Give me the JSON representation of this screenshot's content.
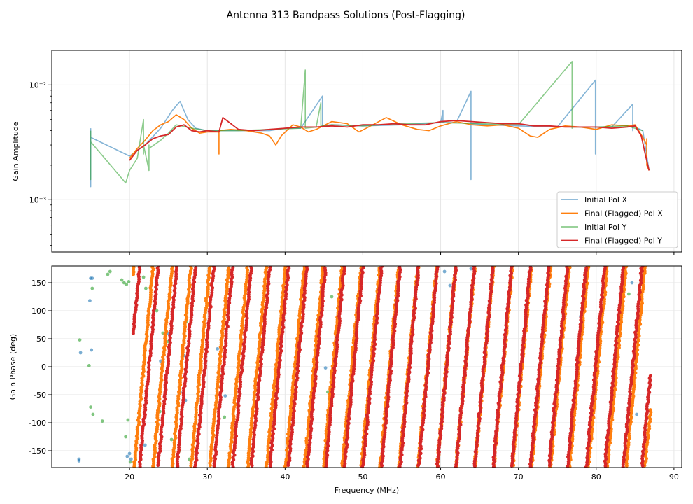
{
  "chart_data": {
    "title": "Antenna 313 Bandpass Solutions (Post-Flagging)",
    "xlabel": "Frequency (MHz)",
    "xlim": [
      10,
      91
    ],
    "xticks": [
      20,
      30,
      40,
      50,
      60,
      70,
      80,
      90
    ],
    "colors": {
      "initial_x": "#1f77b4",
      "final_x": "#ff7f0e",
      "initial_y": "#2ca02c",
      "final_y": "#d62728"
    },
    "panels": [
      {
        "type": "line",
        "ylabel": "Gain Amplitude",
        "yscale": "log",
        "ylim": [
          0.00035,
          0.02
        ],
        "yticks": [
          {
            "value": 0.001,
            "label": "10⁻³"
          },
          {
            "value": 0.01,
            "label": "10⁻²"
          }
        ],
        "grid": true,
        "legend": {
          "placement": "lower-right",
          "entries": [
            "Initial Pol X",
            "Final (Flagged) Pol X",
            "Initial Pol Y",
            "Final (Flagged) Pol Y"
          ]
        },
        "series": [
          {
            "name": "Initial Pol X",
            "key": "initial_x",
            "x": [
              15.0,
              15.0,
              15.0,
              20.0,
              22.0,
              24.0,
              25.5,
              26.5,
              27.5,
              28.5,
              30.0,
              32.0,
              34.0,
              38.0,
              40.0,
              42.0,
              44.8,
              44.8,
              44.8,
              46.0,
              50.0,
              55.0,
              60.0,
              60.3,
              60.3,
              62.0,
              63.9,
              63.9,
              63.9,
              66.0,
              70.0,
              75.0,
              79.9,
              79.9,
              79.9,
              82.0,
              84.7,
              84.7,
              84.7,
              86.0,
              86.8
            ],
            "y": [
              0.0042,
              0.0013,
              0.0035,
              0.0024,
              0.003,
              0.0042,
              0.006,
              0.0072,
              0.005,
              0.0042,
              0.004,
              0.004,
              0.004,
              0.004,
              0.0042,
              0.0042,
              0.008,
              0.0043,
              0.0044,
              0.0045,
              0.0044,
              0.0045,
              0.0047,
              0.006,
              0.0047,
              0.0047,
              0.0088,
              0.0015,
              0.0046,
              0.0045,
              0.0044,
              0.0043,
              0.011,
              0.0025,
              0.0043,
              0.0043,
              0.0068,
              0.004,
              0.0044,
              0.004,
              0.0018
            ]
          },
          {
            "name": "Final (Flagged) Pol X",
            "key": "final_x",
            "x": [
              20.0,
              21.0,
              22.0,
              23.0,
              24.0,
              25.0,
              26.0,
              27.0,
              28.0,
              29.0,
              30.0,
              31.5,
              31.5,
              31.5,
              33.0,
              35.0,
              37.0,
              38.0,
              38.8,
              39.5,
              41.0,
              42.0,
              43.0,
              44.0,
              46.0,
              48.0,
              49.5,
              51.0,
              53.0,
              55.0,
              57.0,
              58.5,
              60.0,
              62.0,
              64.0,
              66.0,
              68.0,
              70.0,
              71.5,
              72.5,
              74.0,
              76.0,
              78.0,
              80.0,
              82.0,
              84.0,
              85.0,
              86.0,
              86.5,
              86.5,
              86.5,
              86.8
            ],
            "y": [
              0.0023,
              0.0028,
              0.0033,
              0.004,
              0.0045,
              0.0048,
              0.0055,
              0.005,
              0.0042,
              0.0038,
              0.0039,
              0.0039,
              0.0025,
              0.004,
              0.0041,
              0.004,
              0.0038,
              0.0036,
              0.003,
              0.0036,
              0.0045,
              0.0043,
              0.0039,
              0.0041,
              0.0048,
              0.0046,
              0.0039,
              0.0044,
              0.0052,
              0.0045,
              0.0041,
              0.004,
              0.0044,
              0.0048,
              0.0045,
              0.0044,
              0.0045,
              0.0042,
              0.0036,
              0.0035,
              0.0041,
              0.0044,
              0.0043,
              0.0041,
              0.0045,
              0.0044,
              0.0045,
              0.0035,
              0.003,
              0.0034,
              0.002,
              0.0018
            ]
          },
          {
            "name": "Initial Pol Y",
            "key": "initial_y",
            "x": [
              15.0,
              15.0,
              15.0,
              19.5,
              20.0,
              21.0,
              21.8,
              21.8,
              21.8,
              22.5,
              22.5,
              22.5,
              24.0,
              25.0,
              26.0,
              28.0,
              30.0,
              32.0,
              34.0,
              38.0,
              42.0,
              42.6,
              42.6,
              42.6,
              44.0,
              44.6,
              44.6,
              44.6,
              46.0,
              50.0,
              55.0,
              60.0,
              65.0,
              70.0,
              76.9,
              76.9,
              76.9,
              80.0,
              84.0,
              86.0
            ],
            "y": [
              0.004,
              0.0015,
              0.0032,
              0.0014,
              0.0018,
              0.0023,
              0.005,
              0.0025,
              0.003,
              0.0018,
              0.003,
              0.0028,
              0.0033,
              0.0038,
              0.0045,
              0.0042,
              0.004,
              0.004,
              0.004,
              0.0041,
              0.0042,
              0.0135,
              0.0042,
              0.0042,
              0.0043,
              0.007,
              0.0043,
              0.0044,
              0.0045,
              0.0044,
              0.0046,
              0.0047,
              0.0046,
              0.0045,
              0.016,
              0.0042,
              0.0043,
              0.0043,
              0.0044,
              0.004
            ]
          },
          {
            "name": "Final (Flagged) Pol Y",
            "key": "final_y",
            "x": [
              20.0,
              21.0,
              22.0,
              23.0,
              24.0,
              25.0,
              26.0,
              27.0,
              28.0,
              29.0,
              30.0,
              31.5,
              32.0,
              34.0,
              36.0,
              38.0,
              40.0,
              42.0,
              44.0,
              46.0,
              48.0,
              50.0,
              52.0,
              54.0,
              56.0,
              58.0,
              60.0,
              62.0,
              64.0,
              66.0,
              68.0,
              70.0,
              72.0,
              74.0,
              76.0,
              78.0,
              80.0,
              82.0,
              84.0,
              85.0,
              85.8,
              86.3,
              86.8
            ],
            "y": [
              0.0022,
              0.0027,
              0.003,
              0.0034,
              0.0036,
              0.0037,
              0.0043,
              0.0045,
              0.004,
              0.0039,
              0.004,
              0.0039,
              0.0052,
              0.0041,
              0.004,
              0.0041,
              0.0042,
              0.0043,
              0.0043,
              0.0044,
              0.0043,
              0.0045,
              0.0045,
              0.0046,
              0.0045,
              0.0045,
              0.0048,
              0.0049,
              0.0048,
              0.0047,
              0.0046,
              0.0046,
              0.0044,
              0.0044,
              0.0043,
              0.0043,
              0.0043,
              0.0042,
              0.0043,
              0.0044,
              0.0036,
              0.0025,
              0.0018
            ]
          }
        ]
      },
      {
        "type": "scatter",
        "ylabel": "Gain Phase (deg)",
        "ylim": [
          -180,
          180
        ],
        "yticks": [
          -150,
          -100,
          -50,
          0,
          50,
          100,
          150
        ],
        "grid": true,
        "wrap_series": [
          {
            "key": "final_x",
            "label": "Final (Flagged) Pol X",
            "f_start": 20.5,
            "f_end": 87.0,
            "ref_freq": 20.6,
            "ref_phase": -180,
            "slope_deg_per_mhz": 148.0
          },
          {
            "key": "final_y",
            "label": "Final (Flagged) Pol Y",
            "f_start": 20.5,
            "f_end": 87.0,
            "ref_freq": 21.3,
            "ref_phase": -180,
            "slope_deg_per_mhz": 150.5
          }
        ],
        "scatter_series": [
          {
            "key": "initial_x",
            "label": "Initial Pol X",
            "x": [
              13.5,
              13.5,
              13.7,
              14.9,
              15.0,
              15.1,
              15.2,
              19.7,
              20.0,
              20.2,
              22.0,
              24.0,
              25.0,
              26.5,
              27.0,
              27.2,
              31.3,
              32.3,
              45.2,
              60.5,
              61.2,
              63.9,
              78.0,
              79.9,
              83.5,
              84.6,
              85.2
            ],
            "y": [
              -165,
              -168,
              25,
              118,
              158,
              30,
              158,
              -160,
              -155,
              -165,
              -140,
              10,
              60,
              -45,
              20,
              -60,
              32,
              -52,
              -2,
              170,
              145,
              175,
              90,
              -42,
              135,
              150,
              -85
            ]
          },
          {
            "key": "initial_y",
            "label": "Initial Pol Y",
            "x": [
              13.6,
              14.8,
              15.0,
              15.2,
              15.3,
              16.5,
              17.2,
              17.5,
              19.0,
              19.3,
              19.6,
              19.9,
              20.1,
              19.5,
              19.8,
              21.8,
              22.1,
              23.5,
              23.9,
              24.3,
              25.0,
              25.4,
              26.0,
              26.4,
              26.8,
              27.3,
              27.7,
              31.8,
              32.2,
              45.5,
              46.0,
              75.8,
              84.2
            ],
            "y": [
              48,
              2,
              -72,
              140,
              -85,
              -97,
              165,
              170,
              155,
              150,
              147,
              152,
              -170,
              -125,
              -95,
              160,
              140,
              100,
              -80,
              60,
              45,
              -130,
              160,
              -150,
              20,
              80,
              -165,
              -15,
              -90,
              -45,
              125,
              92,
              130
            ]
          }
        ]
      }
    ]
  }
}
